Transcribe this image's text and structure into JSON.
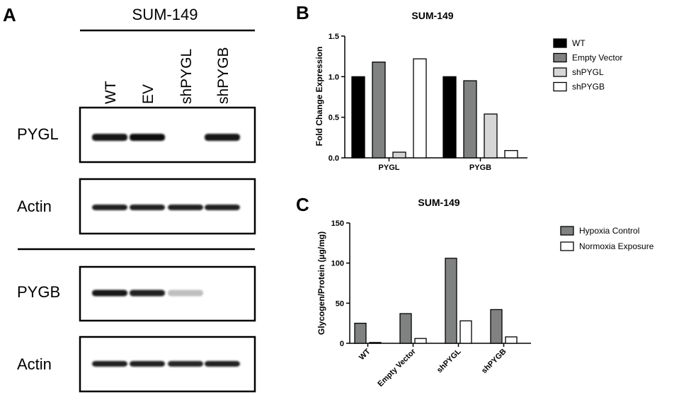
{
  "panels": {
    "a": {
      "letter": "A",
      "cell_line": "SUM-149",
      "lanes": [
        "WT",
        "EV",
        "shPYGL",
        "shPYGB"
      ],
      "blots": [
        {
          "label": "PYGL",
          "intensity": [
            0.95,
            1.0,
            0.0,
            0.95
          ]
        },
        {
          "label": "Actin",
          "intensity": [
            0.9,
            0.9,
            0.9,
            0.9
          ]
        },
        {
          "label": "PYGB",
          "intensity": [
            0.95,
            0.9,
            0.12,
            0.0
          ]
        },
        {
          "label": "Actin",
          "intensity": [
            0.9,
            0.9,
            0.88,
            0.9
          ]
        }
      ]
    },
    "b": {
      "letter": "B"
    },
    "c": {
      "letter": "C"
    }
  },
  "chart_data": [
    {
      "type": "bar",
      "title": "SUM-149",
      "ylabel": "Fold Change Expression",
      "xlabel": "",
      "ylim": [
        0,
        1.5
      ],
      "yticks": [
        "0.0",
        "0.5",
        "1.0",
        "1.5"
      ],
      "categories": [
        "PYGL",
        "PYGB"
      ],
      "legend_position": "right",
      "series": [
        {
          "name": "WT",
          "color": "#000000",
          "values": [
            1.0,
            1.0
          ]
        },
        {
          "name": "Empty Vector",
          "color": "#7f8281",
          "values": [
            1.18,
            0.95
          ]
        },
        {
          "name": "shPYGL",
          "color": "#d6d6d6",
          "values": [
            0.07,
            0.54
          ]
        },
        {
          "name": "shPYGB",
          "color": "#ffffff",
          "values": [
            1.22,
            0.09
          ]
        }
      ]
    },
    {
      "type": "bar",
      "title": "SUM-149",
      "ylabel": "Glycogen/Protein (µg/mg)",
      "xlabel": "",
      "ylim": [
        0,
        150
      ],
      "yticks": [
        "0",
        "50",
        "100",
        "150"
      ],
      "categories": [
        "WT",
        "Empty Vector",
        "shPYGL",
        "shPYGB"
      ],
      "legend_position": "right",
      "series": [
        {
          "name": "Hypoxia Control",
          "color": "#7f8281",
          "values": [
            25,
            37,
            106,
            42
          ]
        },
        {
          "name": "Normoxia Exposure",
          "color": "#ffffff",
          "values": [
            1,
            6,
            28,
            8
          ]
        }
      ]
    }
  ]
}
